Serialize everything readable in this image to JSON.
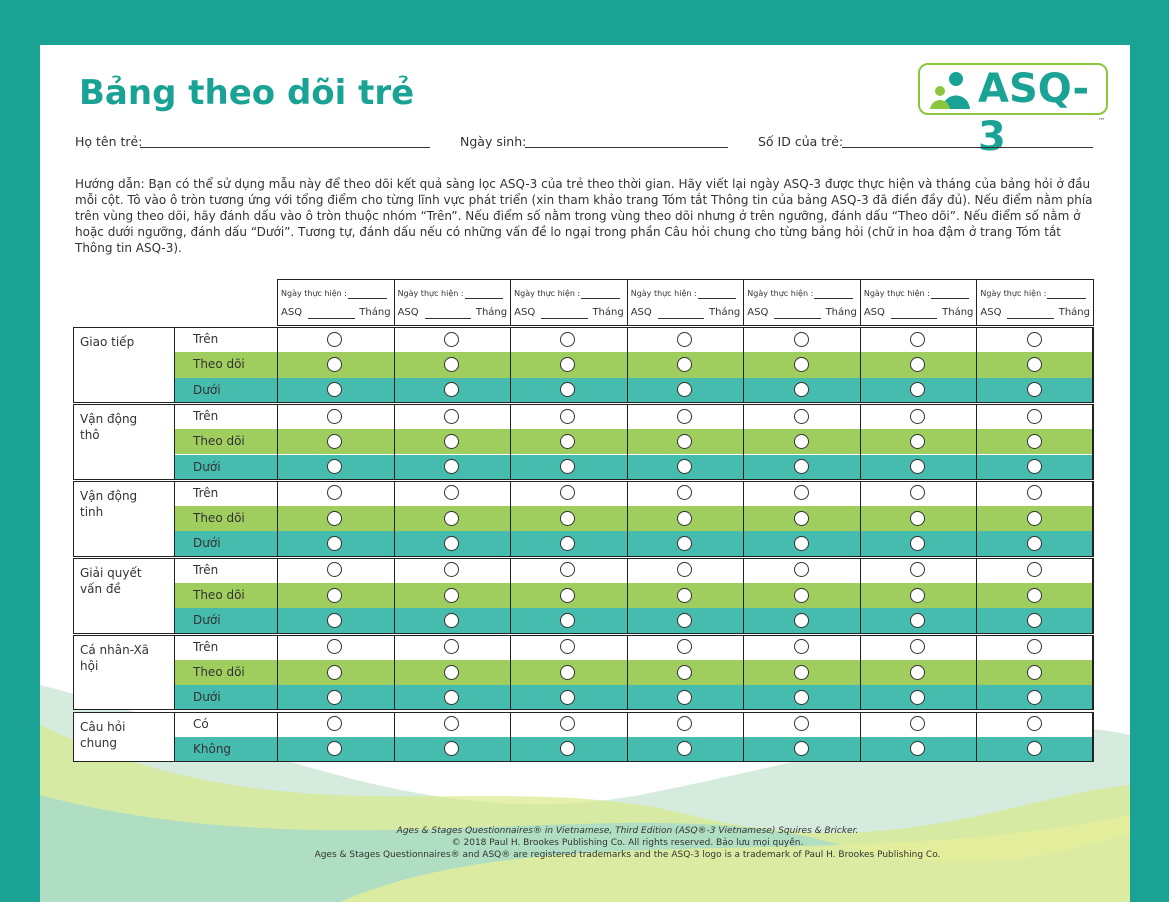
{
  "header": {
    "title": "Bảng theo dõi trẻ",
    "logo": "ASQ-3",
    "logo_mark": "™"
  },
  "fields": [
    "Họ tên trẻ:",
    "Ngày sinh:",
    "Số ID của trẻ:"
  ],
  "instructions": "Hướng dẫn: Bạn có thể sử dụng mẫu này để theo dõi kết quả sàng lọc ASQ-3 của trẻ theo thời gian. Hãy viết lại ngày ASQ-3 được thực hiện và tháng của bảng hỏi ở đầu mỗi cột. Tô vào ô tròn tương ứng với tổng điểm cho từng lĩnh vực phát triển (xin tham khảo trang Tóm tắt Thông tin của bảng ASQ-3 đã điền đầy đủ). Nếu điểm nằm phía trên vùng theo dõi, hãy đánh dấu vào ô tròn thuộc nhóm “Trên”. Nếu điểm số nằm trong vùng theo dõi nhưng ở trên ngưỡng, đánh dấu “Theo dõi”. Nếu điểm số nằm ở hoặc dưới ngưỡng, đánh dấu “Dưới”. Tương tự, đánh dấu nếu có những vấn đề lo ngại trong phần Câu hỏi chung cho từng bảng hỏi (chữ in hoa đậm ở trang Tóm tắt Thông tin ASQ-3).",
  "table": {
    "columns": [
      {
        "date": "Ngày thực hiện :",
        "asq": "ASQ",
        "month": "Tháng"
      },
      {
        "date": "Ngày thực hiện :",
        "asq": "ASQ",
        "month": "Tháng"
      },
      {
        "date": "Ngày thực hiện :",
        "asq": "ASQ",
        "month": "Tháng"
      },
      {
        "date": "Ngày thực hiện :",
        "asq": "ASQ",
        "month": "Tháng"
      },
      {
        "date": "Ngày thực hiện :",
        "asq": "ASQ",
        "month": "Tháng"
      },
      {
        "date": "Ngày thực hiện :",
        "asq": "ASQ",
        "month": "Tháng"
      },
      {
        "date": "Ngày thực hiện :",
        "asq": "ASQ",
        "month": "Tháng"
      }
    ],
    "sections": [
      {
        "name": "Giao tiếp",
        "rows": [
          "Trên",
          "Theo dõi",
          "Dưới"
        ]
      },
      {
        "name": "Vận động thô",
        "rows": [
          "Trên",
          "Theo dõi",
          "Dưới"
        ]
      },
      {
        "name": "Vận động tinh",
        "rows": [
          "Trên",
          "Theo dõi",
          "Dưới"
        ]
      },
      {
        "name": "Giải quyết vấn đề",
        "rows": [
          "Trên",
          "Theo dõi",
          "Dưới"
        ]
      },
      {
        "name": "Cá nhân-Xã hội",
        "rows": [
          "Trên",
          "Theo dõi",
          "Dưới"
        ]
      },
      {
        "name": "Câu hỏi chung",
        "rows": [
          "Có",
          "Không"
        ]
      }
    ]
  },
  "footer": [
    "Ages & Stages Questionnaires® in Vietnamese, Third Edition (ASQ®-3 Vietnamese)  Squires & Bricker.",
    "© 2018 Paul H. Brookes Publishing Co. All rights reserved. Bảo lưu mọi quyền.",
    "Ages & Stages Questionnaires® and ASQ® are registered trademarks and the ASQ-3 logo is a trademark of Paul H. Brookes Publishing Co."
  ]
}
